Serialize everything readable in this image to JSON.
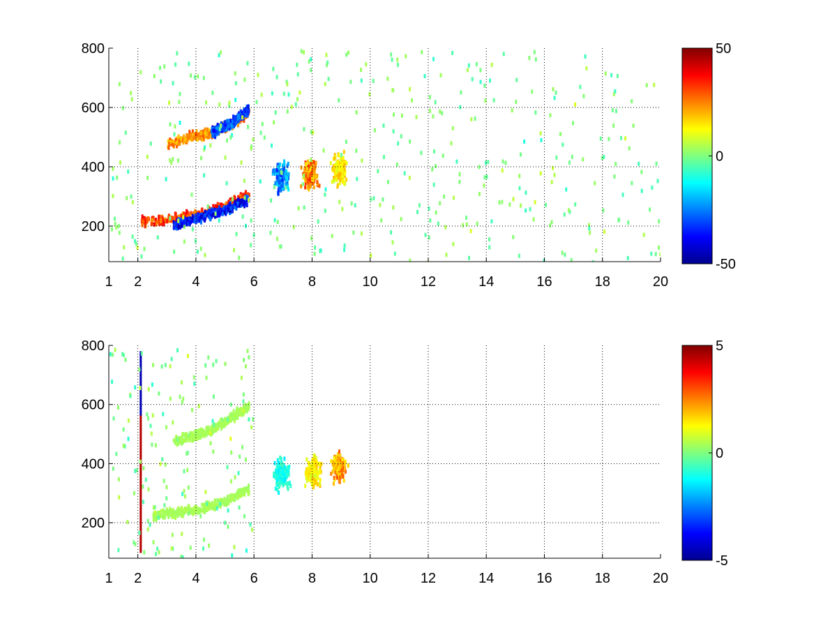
{
  "chart_data": [
    {
      "type": "heatmap",
      "title": "",
      "xlabel": "",
      "ylabel": "",
      "xlim": [
        1,
        20
      ],
      "ylim": [
        80,
        800
      ],
      "x_ticks": [
        1,
        2,
        4,
        6,
        8,
        10,
        12,
        14,
        16,
        18,
        20
      ],
      "y_ticks": [
        200,
        400,
        600,
        800
      ],
      "grid": true,
      "colormap": "jet",
      "colorbar": {
        "range": [
          -50,
          50
        ],
        "tick_labels": [
          "50",
          "0",
          "-50"
        ]
      },
      "features": [
        {
          "name": "lower band",
          "x": [
            2.1,
            3.0,
            4.0,
            5.0,
            5.8
          ],
          "y": [
            225,
            228,
            245,
            275,
            310
          ],
          "value": 40
        },
        {
          "name": "lower band (negative)",
          "x": [
            3.2,
            4.0,
            5.0,
            5.8
          ],
          "y": [
            210,
            232,
            262,
            295
          ],
          "value": -45
        },
        {
          "name": "upper band",
          "x": [
            3.0,
            3.5,
            4.5,
            5.5,
            5.8
          ],
          "y": [
            480,
            500,
            520,
            570,
            590
          ],
          "value": 30
        },
        {
          "name": "upper band (negative)",
          "x": [
            4.5,
            5.2,
            5.8
          ],
          "y": [
            520,
            555,
            600
          ],
          "value": -40
        },
        {
          "name": "cluster",
          "x": [
            6.9
          ],
          "y": [
            370
          ],
          "value": -35
        },
        {
          "name": "cluster",
          "x": [
            7.9
          ],
          "y": [
            380
          ],
          "value": 35
        },
        {
          "name": "cluster",
          "x": [
            8.9
          ],
          "y": [
            395
          ],
          "value": 20
        }
      ]
    },
    {
      "type": "heatmap",
      "title": "",
      "xlabel": "",
      "ylabel": "",
      "xlim": [
        1,
        20
      ],
      "ylim": [
        80,
        800
      ],
      "x_ticks": [
        1,
        2,
        4,
        6,
        8,
        10,
        12,
        14,
        16,
        18,
        20
      ],
      "y_ticks": [
        200,
        400,
        600,
        800
      ],
      "grid": true,
      "colormap": "jet",
      "colorbar": {
        "range": [
          -5,
          5
        ],
        "tick_labels": [
          "5",
          "0",
          "-5"
        ]
      },
      "features": [
        {
          "name": "lower band",
          "x": [
            2.5,
            4.0,
            5.0,
            5.8
          ],
          "y": [
            230,
            250,
            280,
            320
          ],
          "value": 0.5
        },
        {
          "name": "upper band",
          "x": [
            3.2,
            4.5,
            5.8
          ],
          "y": [
            480,
            520,
            600
          ],
          "value": 0.5
        },
        {
          "name": "vertical streak",
          "x": [
            2.1
          ],
          "y": [
            100,
            780
          ],
          "value": 4.5
        },
        {
          "name": "cluster",
          "x": [
            6.9
          ],
          "y": [
            370
          ],
          "value": -1.5
        },
        {
          "name": "cluster",
          "x": [
            8.0
          ],
          "y": [
            380
          ],
          "value": 2
        },
        {
          "name": "cluster",
          "x": [
            8.9
          ],
          "y": [
            395
          ],
          "value": 3
        }
      ]
    }
  ]
}
